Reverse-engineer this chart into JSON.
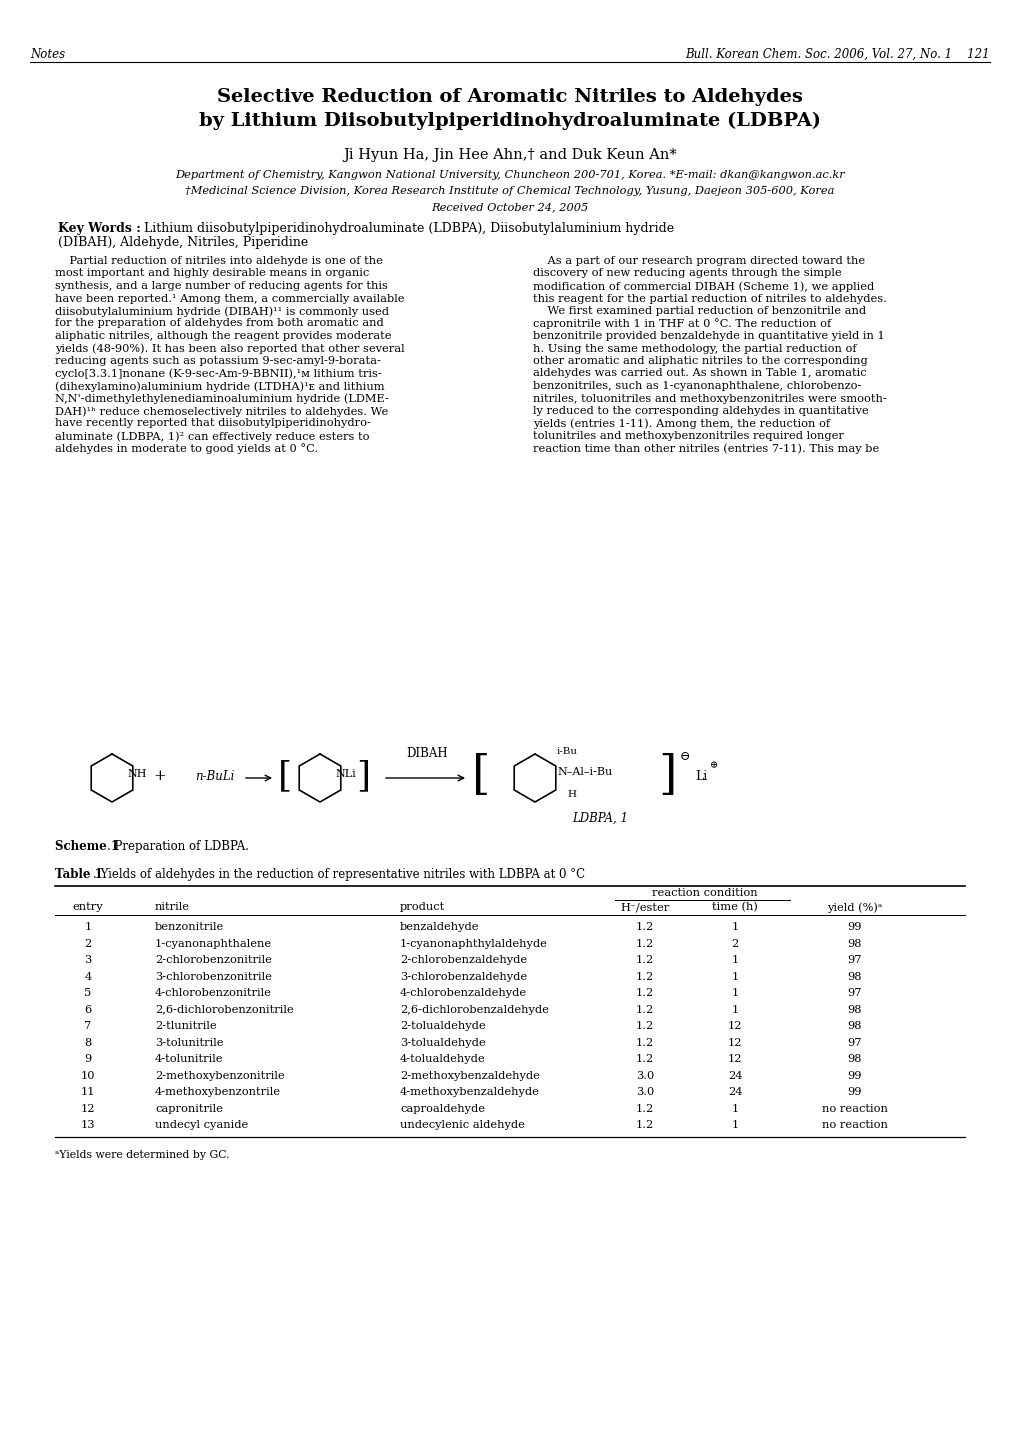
{
  "page_title_line1": "Selective Reduction of Aromatic Nitriles to Aldehydes",
  "page_title_line2": "by Lithium Diisobutylpiperidinohydroaluminate (LDBPA)",
  "authors": "Ji Hyun Ha, Jin Hee Ahn,† and Duk Keun An*",
  "affiliation1": "Department of Chemistry, Kangwon National University, Chuncheon 200-701, Korea. *E-mail: dkan@kangwon.ac.kr",
  "affiliation2": "†Medicinal Science Division, Korea Research Institute of Chemical Technology, Yusung, Daejeon 305-600, Korea",
  "affiliation3": "Received October 24, 2005",
  "keywords_bold": "Key Words :",
  "keywords_rest": "  Lithium diisobutylpiperidinohydroaluminate (LDBPA), Diisobutylaluminium hydride",
  "keywords_line2": "(DIBAH), Aldehyde, Nitriles, Piperidine",
  "header_left": "Notes",
  "header_right": "Bull. Korean Chem. Soc. 2006, Vol. 27, No. 1    121",
  "body_left_lines": [
    "    Partial reduction of nitriles into aldehyde is one of the",
    "most important and highly desirable means in organic",
    "synthesis, and a large number of reducing agents for this",
    "have been reported.¹ Among them, a commercially available",
    "diisobutylaluminium hydride (DIBAH)¹¹ is commonly used",
    "for the preparation of aldehydes from both aromatic and",
    "aliphatic nitriles, although the reagent provides moderate",
    "yields (48-90%). It has been also reported that other several",
    "reducing agents such as potassium 9-sec-amyl-9-borata-",
    "cyclo[3.3.1]nonane (K-9-sec-Am-9-BBNII),¹ᴍ lithium tris-",
    "(dihexylamino)aluminium hydride (LTDHA)¹ᴇ and lithium",
    "N,N'-dimethylethylenediaminoaluminium hydride (LDME-",
    "DAH)¹ʰ reduce chemoselectively nitriles to aldehydes. We",
    "have recently reported that diisobutylpiperidinohydro-",
    "aluminate (LDBPA, 1)² can effectively reduce esters to",
    "aldehydes in moderate to good yields at 0 °C."
  ],
  "body_right_lines": [
    "    As a part of our research program directed toward the",
    "discovery of new reducing agents through the simple",
    "modification of commercial DIBAH (Scheme 1), we applied",
    "this reagent for the partial reduction of nitriles to aldehydes.",
    "    We first examined partial reduction of benzonitrile and",
    "capronitrile with 1 in THF at 0 °C. The reduction of",
    "benzonitrile provided benzaldehyde in quantitative yield in 1",
    "h. Using the same methodology, the partial reduction of",
    "other aromatic and aliphatic nitriles to the corresponding",
    "aldehydes was carried out. As shown in Table 1, aromatic",
    "benzonitriles, such as 1-cyanonaphthalene, chlorobenzo-",
    "nitriles, toluonitriles and methoxybenzonitriles were smooth-",
    "ly reduced to the corresponding aldehydes in quantitative",
    "yields (entries 1-11). Among them, the reduction of",
    "tolunitriles and methoxybenzonitriles required longer",
    "reaction time than other nitriles (entries 7-11). This may be"
  ],
  "scheme_label_bold": "Scheme 1",
  "scheme_label_rest": ". Preparation of LDBPA.",
  "table_title_bold": "Table 1",
  "table_title_rest": ". Yields of aldehydes in the reduction of representative nitriles with LDBPA at 0 °C",
  "table_data": [
    [
      "1",
      "benzonitrile",
      "benzaldehyde",
      "1.2",
      "1",
      "99"
    ],
    [
      "2",
      "1-cyanonaphthalene",
      "1-cyanonaphthylaldehyde",
      "1.2",
      "2",
      "98"
    ],
    [
      "3",
      "2-chlorobenzonitrile",
      "2-chlorobenzaldehyde",
      "1.2",
      "1",
      "97"
    ],
    [
      "4",
      "3-chlorobenzonitrile",
      "3-chlorobenzaldehyde",
      "1.2",
      "1",
      "98"
    ],
    [
      "5",
      "4-chlorobenzonitrile",
      "4-chlorobenzaldehyde",
      "1.2",
      "1",
      "97"
    ],
    [
      "6",
      "2,6-dichlorobenzonitrile",
      "2,6-dichlorobenzaldehyde",
      "1.2",
      "1",
      "98"
    ],
    [
      "7",
      "2-tlunitrile",
      "2-tolualdehyde",
      "1.2",
      "12",
      "98"
    ],
    [
      "8",
      "3-tolunitrile",
      "3-tolualdehyde",
      "1.2",
      "12",
      "97"
    ],
    [
      "9",
      "4-tolunitrile",
      "4-tolualdehyde",
      "1.2",
      "12",
      "98"
    ],
    [
      "10",
      "2-methoxybenzonitrile",
      "2-methoxybenzaldehyde",
      "3.0",
      "24",
      "99"
    ],
    [
      "11",
      "4-methoxybenzontrile",
      "4-methoxybenzaldehyde",
      "3.0",
      "24",
      "99"
    ],
    [
      "12",
      "capronitrile",
      "caproaldehyde",
      "1.2",
      "1",
      "no reaction"
    ],
    [
      "13",
      "undecyl cyanide",
      "undecylenic aldehyde",
      "1.2",
      "1",
      "no reaction"
    ]
  ],
  "table_footnote": "ᵃYields were determined by GC.",
  "bg_color": "#ffffff",
  "text_color": "#000000"
}
